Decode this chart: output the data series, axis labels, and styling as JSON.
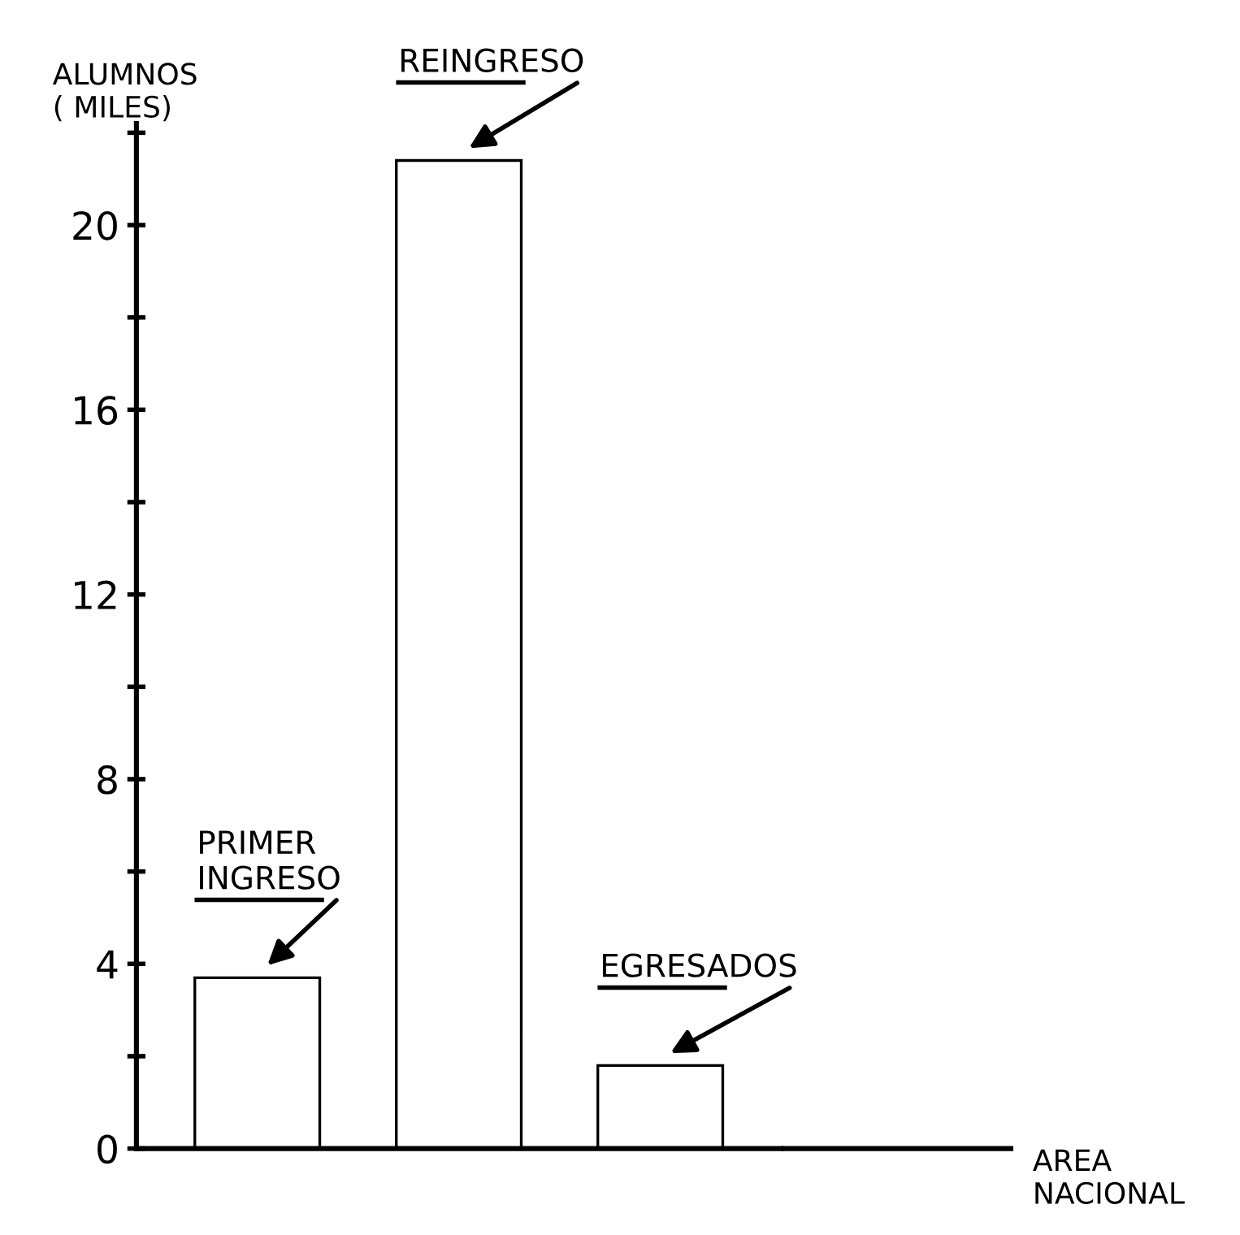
{
  "chart_data": {
    "type": "bar",
    "ylabel": "ALUMNOS\n( MILES)",
    "categories": [
      null,
      null,
      null
    ],
    "values": [
      3.7,
      21.4,
      1.8
    ],
    "color": "#ffffff",
    "annotations": [
      "PRIMER\nINGRESO",
      "REINGRESO",
      "EGRESADOS",
      "AREA\nNACIONAL"
    ],
    "ylim": [
      0,
      22.2
    ],
    "yticks": [
      0,
      {
        "value": 2,
        "label": null
      },
      4,
      {
        "value": 6,
        "label": null
      },
      8,
      {
        "value": 10,
        "label": null
      },
      12,
      {
        "value": 14,
        "label": null
      },
      16,
      {
        "value": 18,
        "label": null
      },
      20,
      {
        "value": 22,
        "label": null
      }
    ],
    "grid": false,
    "legend": false
  }
}
